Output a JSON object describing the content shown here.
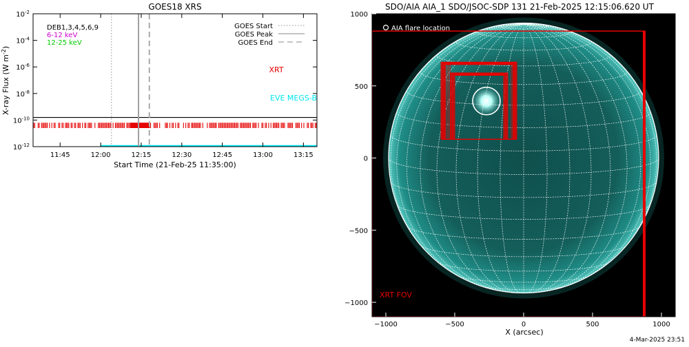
{
  "left_panel": {
    "title": "GOES18 XRS",
    "ylabel": "X-ray Flux (W m",
    "ylabel_sup": "-2",
    "ylabel_close": ")",
    "xlabel": "Start Time (21-Feb-25 11:35:00)",
    "bands": [
      {
        "label": "DEB1,3,4,5,6,9",
        "color": "#000000"
      },
      {
        "label": "6-12 keV",
        "color": "#cc00cc"
      },
      {
        "label": "12-25 keV",
        "color": "#00cc00"
      }
    ],
    "legend": [
      {
        "label": "GOES Start",
        "style": "dotted"
      },
      {
        "label": "GOES Peak",
        "style": "solid"
      },
      {
        "label": "GOES End",
        "style": "dashed"
      }
    ],
    "xrt_label": "XRT",
    "eve_label": "EVE MEGS-B",
    "colors": {
      "xrt": "#e60000",
      "eve": "#00e5ee",
      "goes": "#000000",
      "marker": "#a0a0a0"
    }
  },
  "right_panel": {
    "title": "SDO/AIA AIA_1 SDO/JSOC-SDP 131 21-Feb-2025 12:15:06.620 UT",
    "legend_label": "AIA flare location",
    "fov_label": "XRT FOV",
    "xlabel": "X (arcsec)",
    "colors": {
      "fov": "#e60000",
      "disk": "#1c8f8a",
      "grid": "#ffffff"
    }
  },
  "footer": {
    "timestamp": "4-Mar-2025 23:51"
  },
  "chart_data": [
    {
      "type": "line",
      "title": "GOES18 XRS",
      "xlabel": "Start Time (21-Feb-25 11:35:00)",
      "ylabel": "X-ray Flux (W m-2)",
      "yscale": "log",
      "ylim": [
        1e-12,
        0.01
      ],
      "xlim": [
        "11:35",
        "13:20"
      ],
      "yticks": [
        {
          "label": "10",
          "sup": "-2",
          "value": -2
        },
        {
          "label": "10",
          "sup": "-4",
          "value": -4
        },
        {
          "label": "10",
          "sup": "-6",
          "value": -6
        },
        {
          "label": "10",
          "sup": "-8",
          "value": -8
        },
        {
          "label": "10",
          "sup": "-10",
          "value": -10
        },
        {
          "label": "10",
          "sup": "-12",
          "value": -12
        }
      ],
      "xticks": [
        "11:45",
        "12:00",
        "12:15",
        "12:30",
        "12:45",
        "13:00",
        "13:15"
      ],
      "xtick_minutes": [
        10,
        25,
        40,
        55,
        70,
        85,
        100
      ],
      "markers": {
        "goes_start_min": 29,
        "goes_peak_min": 39,
        "goes_end_min": 43
      },
      "series": [
        {
          "name": "GOES",
          "log_flux": -9.8,
          "x_range_min": [
            0,
            105
          ]
        },
        {
          "name": "XRT",
          "log_flux_band": [
            -10.2,
            -10.6
          ],
          "x_range_min": [
            0,
            105
          ]
        },
        {
          "name": "EVE MEGS-B",
          "log_flux": -12.0,
          "x_range_min": [
            25,
            105
          ]
        }
      ]
    },
    {
      "type": "scatter",
      "title": "SDO/AIA AIA_1 SDO/JSOC-SDP 131 21-Feb-2025 12:15:06.620 UT",
      "xlabel": "X (arcsec)",
      "xlim": [
        -1100,
        1100
      ],
      "ylim": [
        -1100,
        1000
      ],
      "xticks": [
        -1000,
        -500,
        0,
        500,
        1000
      ],
      "yticks": [
        1000,
        500,
        0,
        -500,
        -1000
      ],
      "solar_radius_arcsec": 980,
      "flare_location": {
        "x": -270,
        "y": 395
      },
      "xrt_fov": {
        "x1": -1100,
        "x2": 880,
        "y1": -1100,
        "y2": 880
      },
      "xrt_pointings": [
        {
          "x1": -600,
          "x2": -50,
          "y1": 130,
          "y2": 665
        },
        {
          "x1": -530,
          "x2": -115,
          "y1": 130,
          "y2": 590
        }
      ]
    }
  ]
}
